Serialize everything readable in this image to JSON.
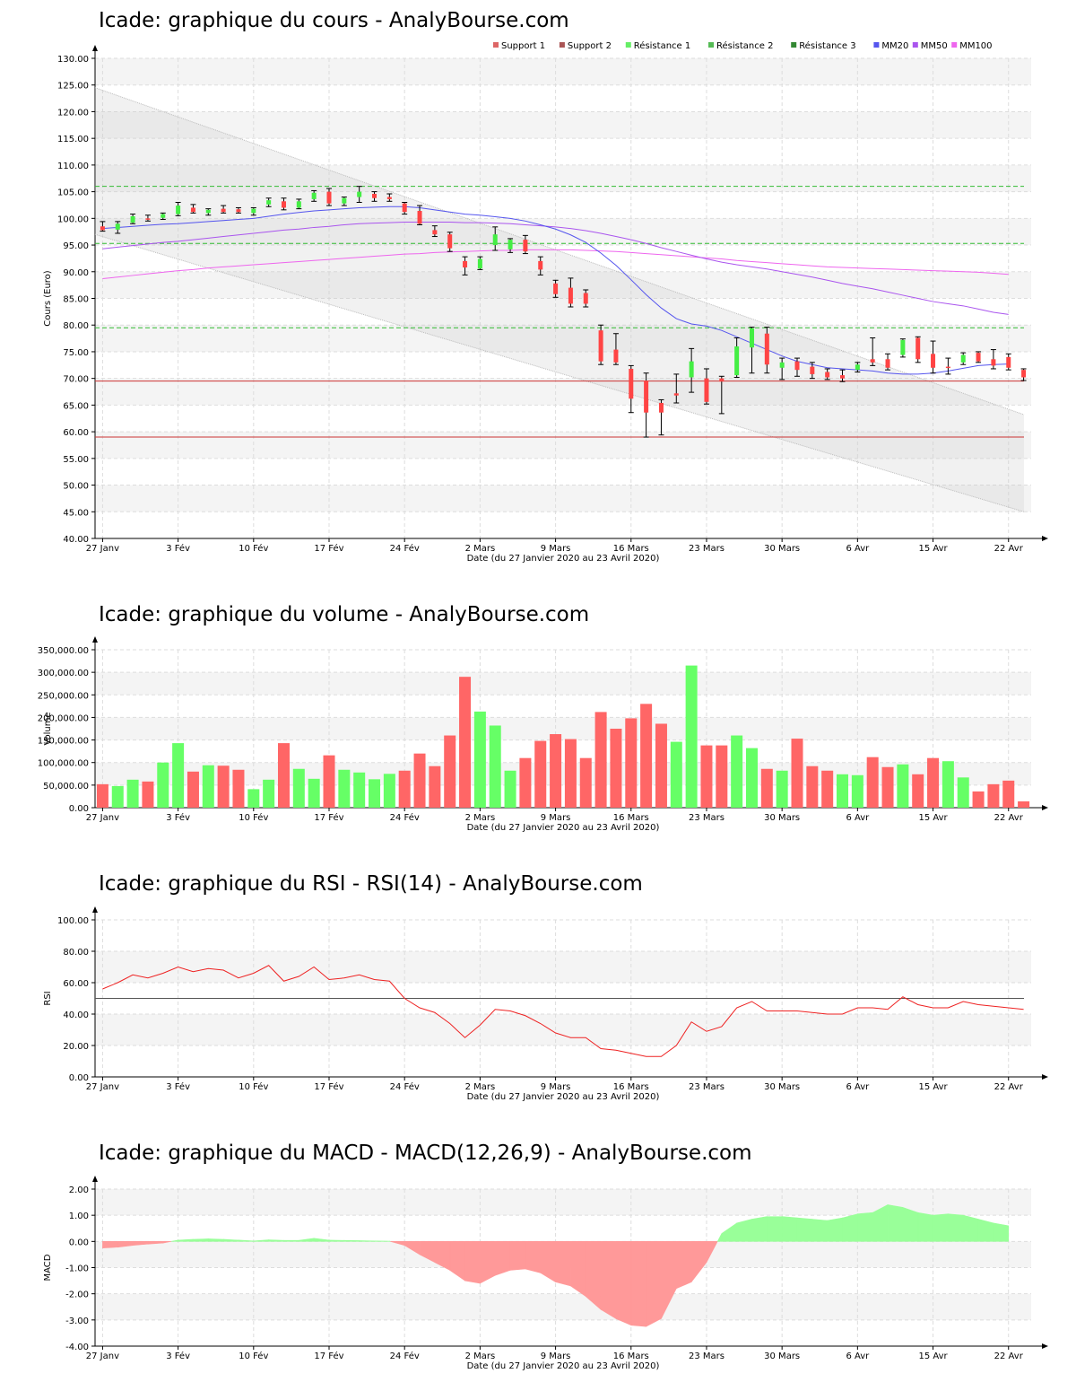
{
  "colors": {
    "up": "#44ee44",
    "down": "#ff4444",
    "vol_up": "#66ff66",
    "vol_down": "#ff6666",
    "support": "#cc3333",
    "resistance": "#33bb33",
    "mm20": "#5555ee",
    "mm50": "#aa55ee",
    "mm100": "#ee66ee",
    "rsi": "#ee2222",
    "macd_pos": "#99ff99",
    "macd_neg": "#ff9999",
    "band": "#f4f4f4"
  },
  "x_axis": {
    "tick_labels": [
      "27 Janv",
      "3 Fév",
      "10 Fév",
      "17 Fév",
      "24 Fév",
      "2 Mars",
      "9 Mars",
      "16 Mars",
      "23 Mars",
      "30 Mars",
      "6 Avr",
      "15 Avr",
      "22 Avr"
    ],
    "tick_index": [
      0,
      5,
      10,
      15,
      20,
      25,
      30,
      35,
      40,
      45,
      50,
      55,
      60
    ],
    "xlabel": "Date (du 27 Janvier 2020 au 23 Avril 2020)"
  },
  "chart_data": [
    {
      "type": "candlestick",
      "title": "Icade: graphique du cours - AnalyBourse.com",
      "ylabel": "Cours (Euro)",
      "ylim": [
        40,
        130
      ],
      "y_ticks": [
        "40.00",
        "45.00",
        "50.00",
        "55.00",
        "60.00",
        "65.00",
        "70.00",
        "75.00",
        "80.00",
        "85.00",
        "90.00",
        "95.00",
        "100.00",
        "105.00",
        "110.00",
        "115.00",
        "120.00",
        "125.00",
        "130.00"
      ],
      "legend": [
        {
          "name": "Support 1",
          "color": "#dd6666"
        },
        {
          "name": "Support 2",
          "color": "#aa5555"
        },
        {
          "name": "Résistance 1",
          "color": "#66ee66"
        },
        {
          "name": "Résistance 2",
          "color": "#55bb55"
        },
        {
          "name": "Résistance 3",
          "color": "#338833"
        },
        {
          "name": "MM20",
          "color": "#5555ee"
        },
        {
          "name": "MM50",
          "color": "#aa55ee"
        },
        {
          "name": "MM100",
          "color": "#ee66ee"
        }
      ],
      "candles": [
        {
          "o": 98.5,
          "h": 99.4,
          "l": 97.6,
          "c": 97.8
        },
        {
          "o": 97.9,
          "h": 99.4,
          "l": 97.2,
          "c": 99.0
        },
        {
          "o": 99.2,
          "h": 100.8,
          "l": 99.0,
          "c": 100.4
        },
        {
          "o": 100.0,
          "h": 100.6,
          "l": 99.5,
          "c": 99.9
        },
        {
          "o": 100.1,
          "h": 101.0,
          "l": 99.8,
          "c": 100.8
        },
        {
          "o": 100.8,
          "h": 103.0,
          "l": 100.5,
          "c": 102.4
        },
        {
          "o": 102.0,
          "h": 102.6,
          "l": 101.0,
          "c": 101.2
        },
        {
          "o": 101.0,
          "h": 101.8,
          "l": 100.6,
          "c": 101.6
        },
        {
          "o": 101.8,
          "h": 102.4,
          "l": 101.0,
          "c": 101.2
        },
        {
          "o": 101.7,
          "h": 102.0,
          "l": 101.0,
          "c": 101.2
        },
        {
          "o": 101.0,
          "h": 102.0,
          "l": 100.6,
          "c": 101.8
        },
        {
          "o": 102.6,
          "h": 103.8,
          "l": 102.2,
          "c": 103.4
        },
        {
          "o": 103.2,
          "h": 103.8,
          "l": 101.6,
          "c": 102.0
        },
        {
          "o": 102.0,
          "h": 103.6,
          "l": 101.8,
          "c": 103.2
        },
        {
          "o": 103.6,
          "h": 105.2,
          "l": 103.2,
          "c": 104.8
        },
        {
          "o": 105.0,
          "h": 105.6,
          "l": 102.4,
          "c": 102.8
        },
        {
          "o": 102.8,
          "h": 104.0,
          "l": 102.4,
          "c": 103.8
        },
        {
          "o": 104.0,
          "h": 106.0,
          "l": 103.0,
          "c": 105.0
        },
        {
          "o": 104.6,
          "h": 105.0,
          "l": 103.2,
          "c": 103.8
        },
        {
          "o": 104.0,
          "h": 104.6,
          "l": 103.2,
          "c": 103.6
        },
        {
          "o": 102.8,
          "h": 103.0,
          "l": 100.8,
          "c": 101.2
        },
        {
          "o": 101.4,
          "h": 102.4,
          "l": 98.8,
          "c": 99.0
        },
        {
          "o": 97.8,
          "h": 98.6,
          "l": 96.6,
          "c": 97.0
        },
        {
          "o": 97.0,
          "h": 97.4,
          "l": 93.8,
          "c": 94.4
        },
        {
          "o": 92.0,
          "h": 92.8,
          "l": 89.4,
          "c": 90.8
        },
        {
          "o": 90.6,
          "h": 92.8,
          "l": 90.4,
          "c": 92.4
        },
        {
          "o": 95.0,
          "h": 98.4,
          "l": 94.0,
          "c": 97.0
        },
        {
          "o": 94.2,
          "h": 96.2,
          "l": 93.6,
          "c": 96.0
        },
        {
          "o": 96.0,
          "h": 96.8,
          "l": 93.4,
          "c": 93.8
        },
        {
          "o": 92.0,
          "h": 92.8,
          "l": 89.4,
          "c": 90.4
        },
        {
          "o": 87.8,
          "h": 88.4,
          "l": 85.2,
          "c": 85.8
        },
        {
          "o": 87.0,
          "h": 88.8,
          "l": 83.4,
          "c": 84.0
        },
        {
          "o": 86.0,
          "h": 86.6,
          "l": 83.4,
          "c": 84.0
        },
        {
          "o": 79.0,
          "h": 80.0,
          "l": 72.6,
          "c": 73.2
        },
        {
          "o": 75.4,
          "h": 78.4,
          "l": 72.6,
          "c": 73.0
        },
        {
          "o": 71.8,
          "h": 72.4,
          "l": 63.6,
          "c": 66.2
        },
        {
          "o": 69.6,
          "h": 71.0,
          "l": 59.0,
          "c": 63.6
        },
        {
          "o": 65.4,
          "h": 66.0,
          "l": 59.4,
          "c": 63.6
        },
        {
          "o": 67.2,
          "h": 70.8,
          "l": 65.4,
          "c": 66.8
        },
        {
          "o": 70.2,
          "h": 75.6,
          "l": 67.4,
          "c": 73.2
        },
        {
          "o": 70.0,
          "h": 71.8,
          "l": 65.2,
          "c": 65.6
        },
        {
          "o": 70.0,
          "h": 70.4,
          "l": 63.4,
          "c": 69.4
        },
        {
          "o": 70.6,
          "h": 77.6,
          "l": 70.2,
          "c": 76.0
        },
        {
          "o": 75.8,
          "h": 79.6,
          "l": 71.0,
          "c": 79.4
        },
        {
          "o": 78.4,
          "h": 79.6,
          "l": 71.0,
          "c": 72.6
        },
        {
          "o": 72.0,
          "h": 73.8,
          "l": 69.8,
          "c": 73.0
        },
        {
          "o": 73.2,
          "h": 73.8,
          "l": 70.4,
          "c": 71.6
        },
        {
          "o": 72.2,
          "h": 73.0,
          "l": 70.0,
          "c": 70.8
        },
        {
          "o": 71.2,
          "h": 71.8,
          "l": 69.8,
          "c": 70.2
        },
        {
          "o": 70.6,
          "h": 71.6,
          "l": 69.4,
          "c": 70.0
        },
        {
          "o": 71.6,
          "h": 73.0,
          "l": 71.2,
          "c": 72.6
        },
        {
          "o": 73.6,
          "h": 77.6,
          "l": 72.4,
          "c": 73.0
        },
        {
          "o": 73.6,
          "h": 74.6,
          "l": 71.6,
          "c": 72.0
        },
        {
          "o": 74.4,
          "h": 77.4,
          "l": 74.0,
          "c": 77.2
        },
        {
          "o": 77.6,
          "h": 77.8,
          "l": 73.0,
          "c": 73.6
        },
        {
          "o": 74.6,
          "h": 77.0,
          "l": 71.0,
          "c": 72.0
        },
        {
          "o": 72.2,
          "h": 73.8,
          "l": 70.8,
          "c": 72.0
        },
        {
          "o": 73.0,
          "h": 74.8,
          "l": 72.6,
          "c": 74.4
        },
        {
          "o": 74.8,
          "h": 75.0,
          "l": 73.0,
          "c": 73.2
        },
        {
          "o": 73.6,
          "h": 75.4,
          "l": 71.8,
          "c": 72.4
        },
        {
          "o": 74.0,
          "h": 74.6,
          "l": 71.6,
          "c": 72.0
        },
        {
          "o": 71.6,
          "h": 71.8,
          "l": 69.6,
          "c": 70.2
        }
      ],
      "mm20": [
        98.1,
        98.3,
        98.5,
        98.7,
        98.9,
        99.0,
        99.2,
        99.4,
        99.6,
        99.8,
        100.0,
        100.4,
        100.8,
        101.1,
        101.4,
        101.6,
        101.8,
        102.0,
        102.1,
        102.2,
        102.2,
        102.0,
        101.6,
        101.2,
        100.8,
        100.6,
        100.3,
        100.0,
        99.5,
        98.8,
        98.0,
        96.9,
        95.5,
        93.5,
        91.2,
        88.5,
        85.7,
        83.2,
        81.2,
        80.2,
        79.8,
        79.0,
        77.8,
        76.6,
        75.4,
        74.2,
        73.2,
        72.6,
        72.0,
        71.8,
        71.6,
        71.4,
        71.0,
        70.8,
        70.8,
        71.0,
        71.4,
        71.9,
        72.4,
        72.6,
        72.7
      ],
      "mm50": [
        94.3,
        94.6,
        94.9,
        95.2,
        95.5,
        95.7,
        96.0,
        96.3,
        96.6,
        96.9,
        97.2,
        97.5,
        97.8,
        98.0,
        98.3,
        98.5,
        98.8,
        99.0,
        99.1,
        99.2,
        99.3,
        99.3,
        99.3,
        99.3,
        99.2,
        99.2,
        99.1,
        99.0,
        98.8,
        98.6,
        98.4,
        98.1,
        97.7,
        97.2,
        96.6,
        96.0,
        95.3,
        94.5,
        93.8,
        93.1,
        92.4,
        91.8,
        91.3,
        90.9,
        90.5,
        90.0,
        89.5,
        89.0,
        88.4,
        87.8,
        87.3,
        86.8,
        86.2,
        85.6,
        85.0,
        84.4,
        84.0,
        83.6,
        83.0,
        82.4,
        82.0
      ],
      "mm100": [
        88.7,
        89.0,
        89.3,
        89.6,
        89.9,
        90.2,
        90.4,
        90.7,
        90.9,
        91.1,
        91.3,
        91.5,
        91.7,
        91.9,
        92.1,
        92.3,
        92.5,
        92.7,
        92.9,
        93.1,
        93.3,
        93.4,
        93.6,
        93.7,
        93.8,
        93.9,
        94.0,
        94.0,
        94.1,
        94.1,
        94.1,
        94.1,
        94.0,
        93.9,
        93.8,
        93.6,
        93.4,
        93.2,
        93.0,
        92.8,
        92.6,
        92.4,
        92.1,
        91.9,
        91.7,
        91.5,
        91.3,
        91.1,
        90.9,
        90.8,
        90.7,
        90.6,
        90.5,
        90.4,
        90.3,
        90.2,
        90.1,
        90.0,
        89.9,
        89.7,
        89.5
      ],
      "support_levels": [
        69.5,
        59.0
      ],
      "resistance_levels": [
        79.5,
        95.3,
        106.0
      ],
      "trend_channel": {
        "upper": [
          124.5,
          63.2
        ],
        "lower": [
          97.0,
          45.0
        ]
      }
    },
    {
      "type": "bar",
      "title": "Icade: graphique du volume - AnalyBourse.com",
      "ylabel": "Volume",
      "ylim": [
        0,
        350000
      ],
      "y_ticks": [
        "0.00",
        "50,000.00",
        "100,000.00",
        "150,000.00",
        "200,000.00",
        "250,000.00",
        "300,000.00",
        "350,000.00"
      ],
      "values": [
        52000,
        48000,
        62000,
        58000,
        100000,
        143000,
        80000,
        94000,
        93000,
        84000,
        41000,
        62000,
        143000,
        86000,
        64000,
        116000,
        84000,
        78000,
        63000,
        75000,
        82000,
        120000,
        92000,
        160000,
        290000,
        213000,
        182000,
        82000,
        110000,
        148000,
        163000,
        152000,
        110000,
        212000,
        175000,
        198000,
        230000,
        186000,
        146000,
        315000,
        138000,
        138000,
        160000,
        132000,
        86000,
        82000,
        153000,
        92000,
        82000,
        74000,
        72000,
        112000,
        90000,
        96000,
        74000,
        110000,
        103000,
        67000,
        36000,
        52000,
        60000,
        14000
      ],
      "up": [
        false,
        true,
        true,
        false,
        true,
        true,
        false,
        true,
        false,
        false,
        true,
        true,
        false,
        true,
        true,
        false,
        true,
        true,
        true,
        true,
        false,
        false,
        false,
        false,
        false,
        true,
        true,
        true,
        false,
        false,
        false,
        false,
        false,
        false,
        false,
        false,
        false,
        false,
        true,
        true,
        false,
        false,
        true,
        true,
        false,
        true,
        false,
        false,
        false,
        true,
        true,
        false,
        false,
        true,
        false,
        false,
        true,
        true,
        false,
        false,
        false,
        false
      ]
    },
    {
      "type": "line",
      "title": "Icade: graphique du RSI - RSI(14) - AnalyBourse.com",
      "ylabel": "RSI",
      "ylim": [
        0,
        100
      ],
      "y_ticks": [
        "0.00",
        "20.00",
        "40.00",
        "60.00",
        "80.00",
        "100.00"
      ],
      "reference": 50,
      "values": [
        56,
        60,
        65,
        63,
        66,
        70,
        67,
        69,
        68,
        63,
        66,
        71,
        61,
        64,
        70,
        62,
        63,
        65,
        62,
        61,
        50,
        44,
        41,
        34,
        25,
        33,
        43,
        42,
        39,
        34,
        28,
        25,
        25,
        18,
        17,
        15,
        13,
        13,
        20,
        35,
        29,
        32,
        44,
        48,
        42,
        42,
        42,
        41,
        40,
        40,
        44,
        44,
        43,
        51,
        46,
        44,
        44,
        48,
        46,
        45,
        44,
        43
      ]
    },
    {
      "type": "area",
      "title": "Icade: graphique du MACD - MACD(12,26,9) - AnalyBourse.com",
      "ylabel": "MACD",
      "ylim": [
        -4,
        2
      ],
      "y_ticks": [
        "-4.00",
        "-3.00",
        "-2.00",
        "-1.00",
        "0.00",
        "1.00",
        "2.00"
      ],
      "values": [
        -0.25,
        -0.22,
        -0.15,
        -0.1,
        -0.06,
        0.05,
        0.08,
        0.1,
        0.08,
        0.05,
        0.02,
        0.06,
        0.04,
        0.04,
        0.12,
        0.05,
        0.04,
        0.03,
        0.02,
        0.01,
        -0.15,
        -0.5,
        -0.8,
        -1.1,
        -1.5,
        -1.6,
        -1.3,
        -1.1,
        -1.05,
        -1.2,
        -1.55,
        -1.7,
        -2.1,
        -2.6,
        -2.95,
        -3.2,
        -3.25,
        -2.95,
        -1.8,
        -1.55,
        -0.8,
        0.3,
        0.7,
        0.85,
        0.95,
        0.95,
        0.9,
        0.85,
        0.8,
        0.9,
        1.05,
        1.1,
        1.4,
        1.3,
        1.1,
        1.0,
        1.05,
        1.0,
        0.85,
        0.7,
        0.6
      ]
    }
  ],
  "panels_layout_note": ""
}
